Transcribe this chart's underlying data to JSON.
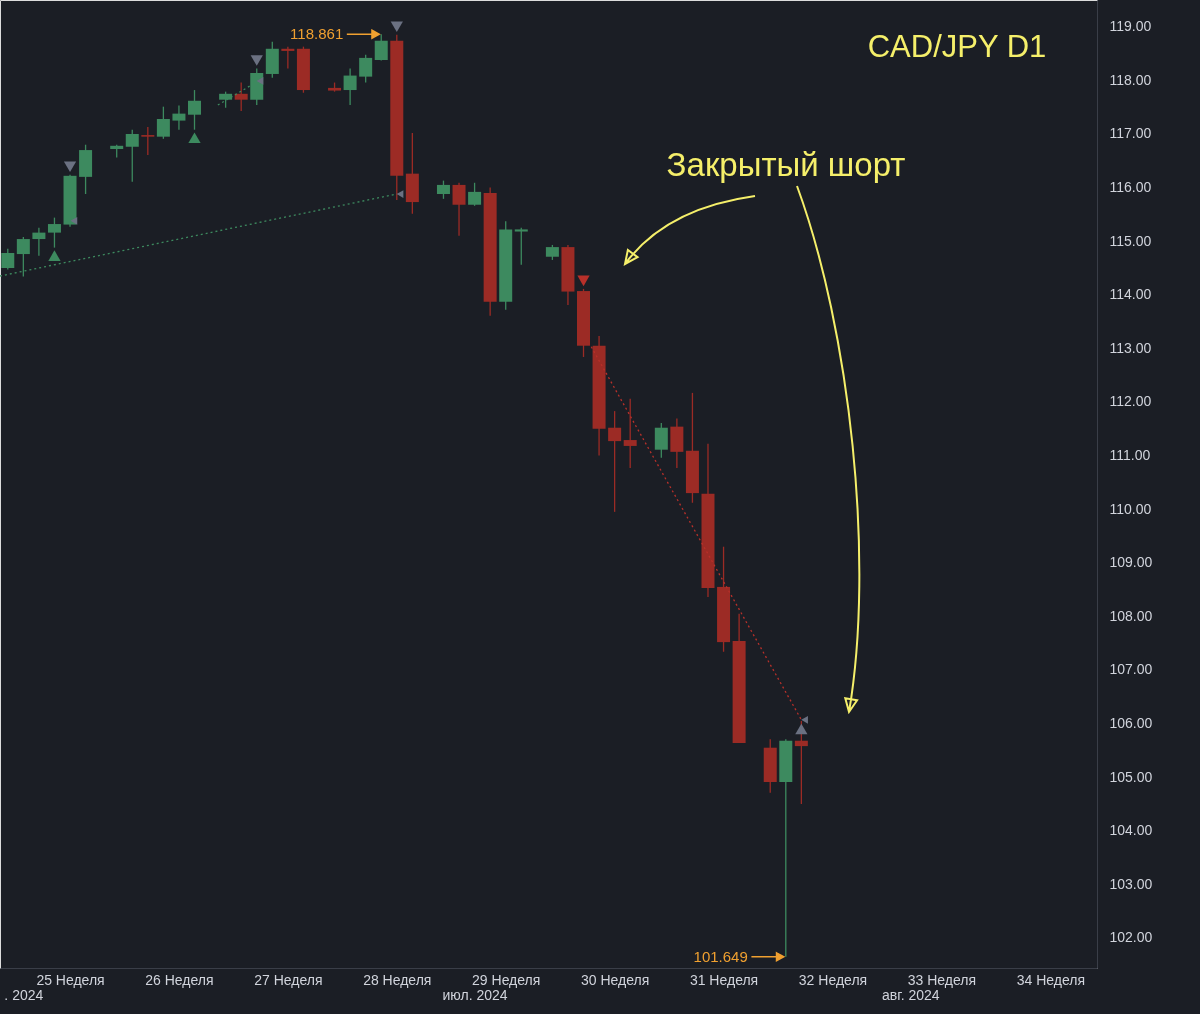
{
  "chart_data": {
    "type": "candlestick",
    "title": "CAD/JPY D1",
    "x": [
      "2024-06-16",
      "2024-06-17",
      "2024-06-18",
      "2024-06-19",
      "2024-06-20",
      "2024-06-21",
      "2024-06-23",
      "2024-06-24",
      "2024-06-25",
      "2024-06-26",
      "2024-06-27",
      "2024-06-28",
      "2024-06-30",
      "2024-07-01",
      "2024-07-02",
      "2024-07-03",
      "2024-07-04",
      "2024-07-05",
      "2024-07-07",
      "2024-07-08",
      "2024-07-09",
      "2024-07-10",
      "2024-07-11",
      "2024-07-12",
      "2024-07-14",
      "2024-07-15",
      "2024-07-16",
      "2024-07-17",
      "2024-07-18",
      "2024-07-19",
      "2024-07-21",
      "2024-07-22",
      "2024-07-23",
      "2024-07-24",
      "2024-07-25",
      "2024-07-26",
      "2024-07-28",
      "2024-07-29",
      "2024-07-30",
      "2024-07-31",
      "2024-08-01",
      "2024-08-02",
      "2024-08-04",
      "2024-08-05",
      "2024-08-06"
    ],
    "ohlc": [
      [
        114.5,
        114.86,
        114.47,
        114.78
      ],
      [
        114.76,
        115.08,
        114.34,
        115.04
      ],
      [
        115.04,
        115.25,
        114.73,
        115.16
      ],
      [
        115.16,
        115.44,
        114.88,
        115.32
      ],
      [
        115.31,
        116.24,
        115.27,
        116.22
      ],
      [
        116.2,
        116.8,
        115.88,
        116.7
      ],
      [
        116.72,
        116.8,
        116.56,
        116.78
      ],
      [
        116.76,
        117.08,
        116.11,
        117.0
      ],
      [
        116.98,
        117.13,
        116.61,
        116.95
      ],
      [
        116.95,
        117.51,
        116.91,
        117.28
      ],
      [
        117.25,
        117.53,
        117.08,
        117.38
      ],
      [
        117.36,
        117.82,
        117.08,
        117.62
      ],
      [
        117.64,
        117.79,
        117.49,
        117.75
      ],
      [
        117.75,
        117.96,
        117.43,
        117.64
      ],
      [
        117.64,
        118.22,
        117.54,
        118.14
      ],
      [
        118.12,
        118.72,
        118.05,
        118.59
      ],
      [
        118.59,
        118.63,
        118.22,
        118.55
      ],
      [
        118.59,
        118.63,
        117.77,
        117.82
      ],
      [
        117.86,
        117.96,
        117.79,
        117.81
      ],
      [
        117.82,
        118.22,
        117.54,
        118.09
      ],
      [
        118.07,
        118.48,
        117.96,
        118.42
      ],
      [
        118.38,
        118.861,
        118.37,
        118.74
      ],
      [
        118.74,
        118.85,
        115.77,
        116.22
      ],
      [
        116.26,
        117.02,
        115.51,
        115.73
      ],
      [
        115.88,
        116.13,
        115.79,
        116.05
      ],
      [
        116.05,
        116.09,
        115.1,
        115.68
      ],
      [
        115.68,
        116.09,
        115.66,
        115.92
      ],
      [
        115.9,
        116.0,
        113.61,
        113.87
      ],
      [
        113.87,
        115.37,
        113.72,
        115.22
      ],
      [
        115.18,
        115.25,
        114.56,
        115.22
      ],
      [
        114.71,
        114.93,
        114.65,
        114.89
      ],
      [
        114.89,
        114.93,
        113.81,
        114.06
      ],
      [
        114.07,
        114.11,
        112.84,
        113.05
      ],
      [
        113.05,
        113.23,
        111.0,
        111.5
      ],
      [
        111.52,
        111.83,
        109.95,
        111.27
      ],
      [
        111.29,
        112.06,
        110.77,
        111.18
      ],
      [
        111.11,
        111.61,
        110.96,
        111.52
      ],
      [
        111.54,
        111.69,
        110.77,
        111.07
      ],
      [
        111.09,
        112.17,
        110.12,
        110.3
      ],
      [
        110.29,
        111.22,
        108.36,
        108.53
      ],
      [
        108.55,
        109.3,
        107.34,
        107.52
      ],
      [
        107.54,
        108.05,
        105.64,
        105.64
      ],
      [
        105.55,
        105.71,
        104.71,
        104.91
      ],
      [
        104.91,
        105.71,
        101.649,
        105.68
      ],
      [
        105.68,
        106.05,
        104.5,
        105.58
      ]
    ],
    "colors": [
      "#3d8a5f",
      "#3d8a5f",
      "#3d8a5f",
      "#3d8a5f",
      "#3d8a5f",
      "#3d8a5f",
      "#3d8a5f",
      "#3d8a5f",
      "#9c2b25",
      "#3d8a5f",
      "#3d8a5f",
      "#3d8a5f",
      "#3d8a5f",
      "#9c2b25",
      "#3d8a5f",
      "#3d8a5f",
      "#9c2b25",
      "#9c2b25",
      "#9c2b25",
      "#3d8a5f",
      "#3d8a5f",
      "#3d8a5f",
      "#9c2b25",
      "#9c2b25",
      "#3d8a5f",
      "#9c2b25",
      "#3d8a5f",
      "#9c2b25",
      "#3d8a5f",
      "#3d8a5f",
      "#3d8a5f",
      "#9c2b25",
      "#9c2b25",
      "#9c2b25",
      "#9c2b25",
      "#9c2b25",
      "#3d8a5f",
      "#9c2b25",
      "#9c2b25",
      "#9c2b25",
      "#9c2b25",
      "#9c2b25",
      "#9c2b25",
      "#3d8a5f",
      "#9c2b25"
    ],
    "series": [
      {
        "type": "line",
        "x": [
          "2024-06-15T12:00",
          "2024-07-11"
        ],
        "values": [
          114.35,
          115.88
        ],
        "color": "#3d8a5f",
        "line_style": "dotted"
      },
      {
        "type": "line",
        "x": [
          "2024-06-29T12:00",
          "2024-07-01T14:00"
        ],
        "values": [
          117.54,
          117.9
        ],
        "color": "#3d8a5f",
        "line_style": "dotted"
      },
      {
        "type": "line",
        "x": [
          "2024-07-23T12:00",
          "2024-08-06"
        ],
        "values": [
          113.03,
          106.07
        ],
        "color": "#b8302a",
        "line_style": "dotted"
      },
      {
        "type": "scatter",
        "x": [
          "2024-06-20",
          "2024-07-02",
          "2024-07-11"
        ],
        "values": [
          116.39,
          118.37,
          119.0
        ],
        "color": "#6b7182",
        "marker": "triangle-down"
      },
      {
        "type": "scatter",
        "x": [
          "2024-06-19",
          "2024-06-28"
        ],
        "values": [
          114.73,
          116.93
        ],
        "color": "#3d8a5f",
        "marker": "triangle"
      },
      {
        "type": "scatter",
        "x": [
          "2024-07-23"
        ],
        "values": [
          114.26
        ],
        "color": "#b8302a",
        "marker": "triangle-down"
      },
      {
        "type": "scatter",
        "x": [
          "2024-08-06"
        ],
        "values": [
          105.9
        ],
        "color": "#6b7182",
        "marker": "triangle"
      },
      {
        "type": "scatter",
        "x": [
          "2024-06-20T06:00",
          "2024-07-02T05:00",
          "2024-07-11T05:00",
          "2024-08-06T05:00"
        ],
        "values": [
          115.38,
          117.99,
          115.88,
          106.07
        ],
        "color": "#6b7182",
        "marker": "triangle-left"
      }
    ],
    "xlim": [
      "2024-06-15T12:00",
      "2024-08-25"
    ],
    "xticks": [
      {
        "value": "2024-06-20",
        "label": "25 Неделя"
      },
      {
        "value": "2024-06-27",
        "label": "26 Неделя"
      },
      {
        "value": "2024-07-04",
        "label": "27 Неделя"
      },
      {
        "value": "2024-07-11",
        "label": "28 Неделя"
      },
      {
        "value": "2024-07-18",
        "label": "29 Неделя"
      },
      {
        "value": "2024-07-25",
        "label": "30 Неделя"
      },
      {
        "value": "2024-08-01",
        "label": "31 Неделя"
      },
      {
        "value": "2024-08-08",
        "label": "32 Неделя"
      },
      {
        "value": "2024-08-15",
        "label": "33 Неделя"
      },
      {
        "value": "2024-08-22",
        "label": "34 Неделя"
      }
    ],
    "x2lim": [
      "2024-06-15T12:00",
      "2024-08-25"
    ],
    "x2ticks": [
      {
        "value": "2024-06-17",
        "label": ". 2024"
      },
      {
        "value": "2024-07-16",
        "label": "июл. 2024"
      },
      {
        "value": "2024-08-13",
        "label": "авг. 2024"
      }
    ],
    "ylim": [
      101.44,
      119.5
    ],
    "yticks": [
      {
        "value": 102,
        "label": "102.00"
      },
      {
        "value": 103,
        "label": "103.00"
      },
      {
        "value": 104,
        "label": "104.00"
      },
      {
        "value": 105,
        "label": "105.00"
      },
      {
        "value": 106,
        "label": "106.00"
      },
      {
        "value": 107,
        "label": "107.00"
      },
      {
        "value": 108,
        "label": "108.00"
      },
      {
        "value": 109,
        "label": "109.00"
      },
      {
        "value": 110,
        "label": "110.00"
      },
      {
        "value": 111,
        "label": "111.00"
      },
      {
        "value": 112,
        "label": "112.00"
      },
      {
        "value": 113,
        "label": "113.00"
      },
      {
        "value": 114,
        "label": "114.00"
      },
      {
        "value": 115,
        "label": "115.00"
      },
      {
        "value": 116,
        "label": "116.00"
      },
      {
        "value": 117,
        "label": "117.00"
      },
      {
        "value": 118,
        "label": "118.00"
      },
      {
        "value": 119,
        "label": "119.00"
      }
    ],
    "annotations": [
      "Закрытый шорт",
      {
        "text": "118.861",
        "x": "2024-07-10",
        "y": 118.861
      },
      {
        "text": "101.649",
        "x": "2024-08-05",
        "y": 101.649
      }
    ]
  }
}
